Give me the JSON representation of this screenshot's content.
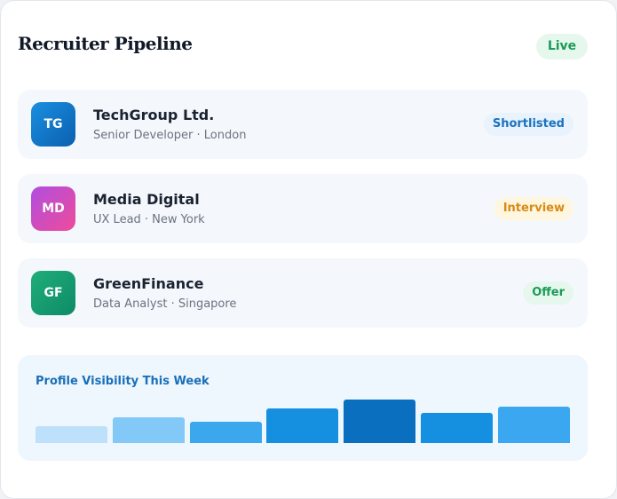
{
  "header": {
    "title": "Recruiter Pipeline",
    "badge": "Live"
  },
  "candidates": [
    {
      "initials": "TG",
      "company": "TechGroup Ltd.",
      "detail": "Senior Developer · London",
      "status": "Shortlisted"
    },
    {
      "initials": "MD",
      "company": "Media Digital",
      "detail": "UX Lead · New York",
      "status": "Interview"
    },
    {
      "initials": "GF",
      "company": "GreenFinance",
      "detail": "Data Analyst · Singapore",
      "status": "Offer"
    }
  ],
  "visibility": {
    "type": "bar",
    "title": "Profile Visibility This Week",
    "values": [
      38,
      58,
      48,
      78,
      98,
      68,
      82
    ],
    "colors": [
      "#bde0fb",
      "#82c9f8",
      "#3ba8ee",
      "#1590e0",
      "#0a6fbf",
      "#1590e0",
      "#3aa7f0"
    ],
    "ylim": [
      0,
      100
    ]
  }
}
